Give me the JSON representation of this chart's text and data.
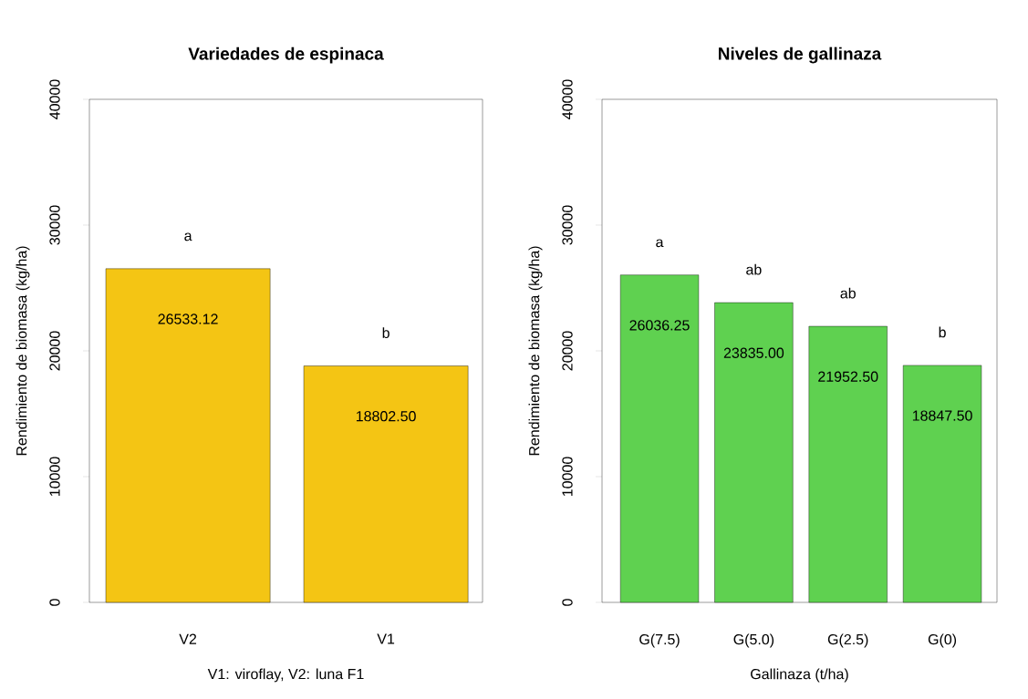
{
  "chart_data": [
    {
      "type": "bar",
      "title": "Variedades de espinaca",
      "xlabel": "V1: viroflay, V2: luna F1",
      "ylabel": "Rendimiento de biomasa (kg/ha)",
      "categories": [
        "V2",
        "V1"
      ],
      "values": [
        26533.12,
        18802.5
      ],
      "value_labels": [
        "26533.12",
        "18802.50"
      ],
      "color": "#f4c514",
      "ylim": [
        0,
        40000
      ],
      "yticks": [
        0,
        10000,
        20000,
        30000,
        40000
      ],
      "annotations": [
        "a",
        "b"
      ]
    },
    {
      "type": "bar",
      "title": "Niveles de gallinaza",
      "xlabel": "Gallinaza (t/ha)",
      "ylabel": "Rendimiento de biomasa (kg/ha)",
      "categories": [
        "G(7.5)",
        "G(5.0)",
        "G(2.5)",
        "G(0)"
      ],
      "values": [
        26036.25,
        23835.0,
        21952.5,
        18847.5
      ],
      "value_labels": [
        "26036.25",
        "23835.00",
        "21952.50",
        "18847.50"
      ],
      "color": "#5fd150",
      "ylim": [
        0,
        40000
      ],
      "yticks": [
        0,
        10000,
        20000,
        30000,
        40000
      ],
      "annotations": [
        "a",
        "ab",
        "ab",
        "b"
      ]
    }
  ]
}
